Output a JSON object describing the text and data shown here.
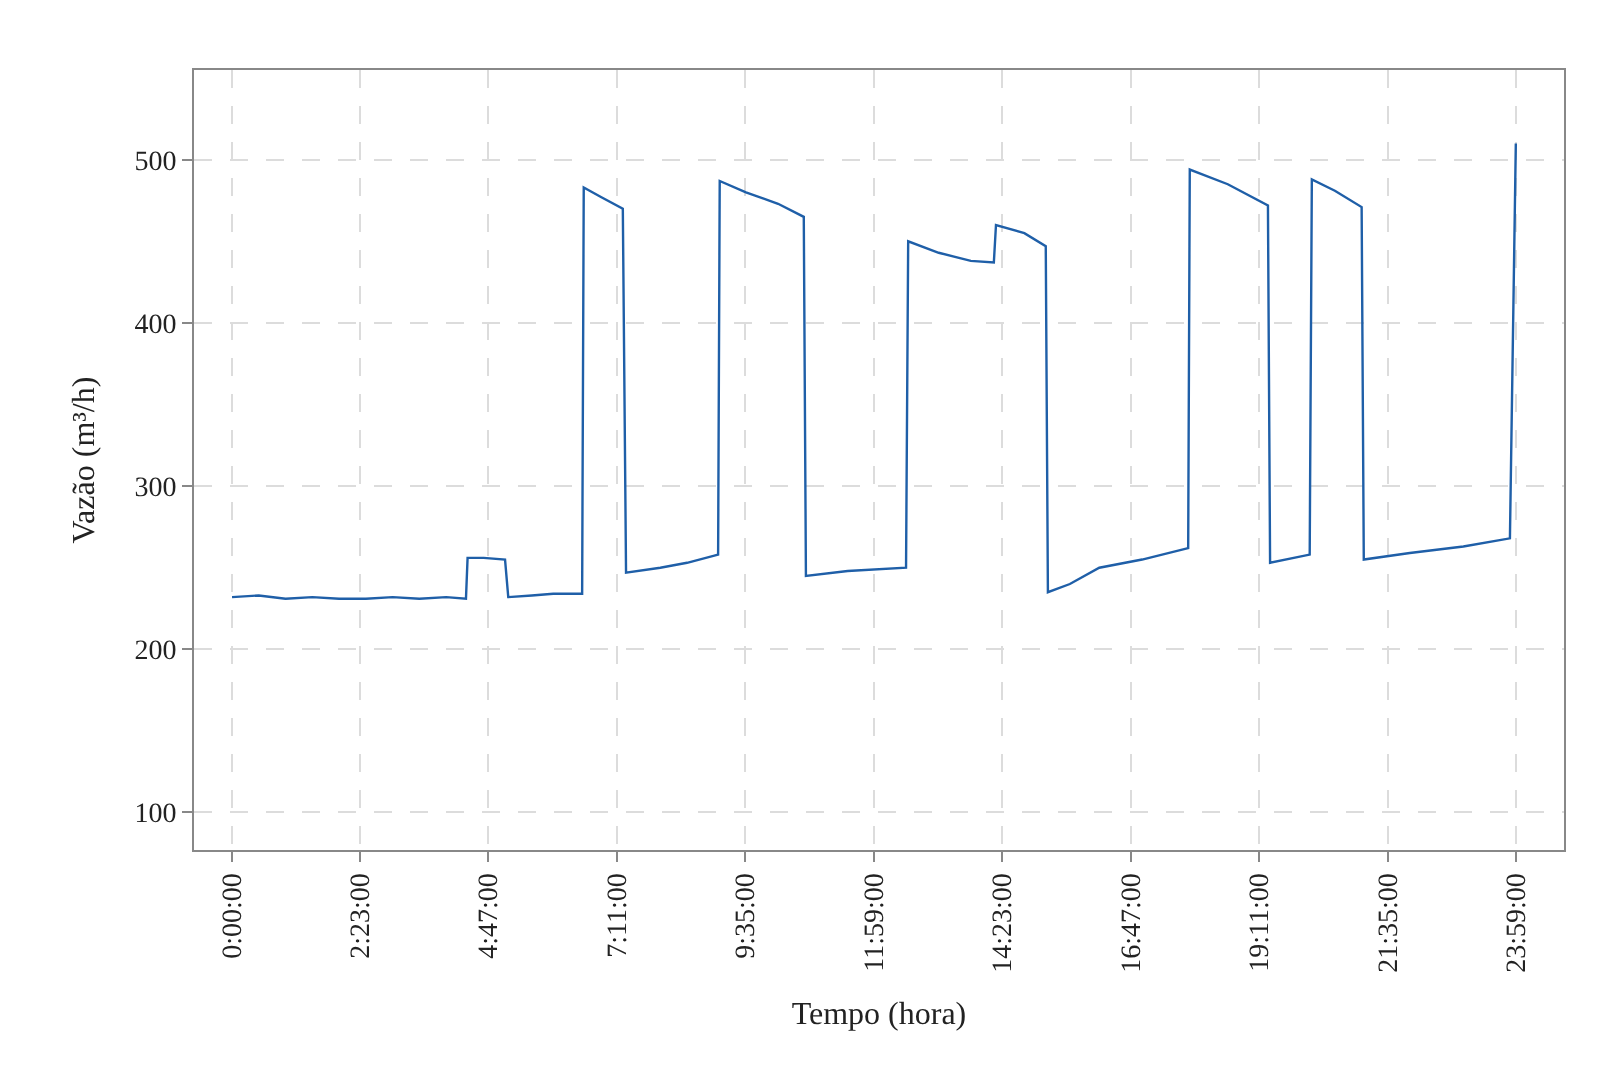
{
  "chart_data": {
    "type": "line",
    "xlabel": "Tempo (hora)",
    "ylabel": "Vazão (m³/h)",
    "x": [
      0,
      0.5,
      1,
      1.5,
      2,
      2.5,
      3,
      3.5,
      4,
      4.37,
      4.4,
      4.7,
      5.1,
      5.16,
      5.6,
      6,
      6.54,
      6.57,
      6.9,
      7.3,
      7.36,
      8,
      8.5,
      9.08,
      9.11,
      9.6,
      10.2,
      10.68,
      10.72,
      11.5,
      12.59,
      12.63,
      13.2,
      13.8,
      14.23,
      14.27,
      14.8,
      15.2,
      15.24,
      15.65,
      16.2,
      17,
      17.86,
      17.89,
      18.6,
      19.35,
      19.39,
      20.13,
      20.17,
      20.6,
      21.1,
      21.14,
      22,
      23,
      23.87,
      23.98
    ],
    "series": [
      {
        "color": "#1f5fa8",
        "values": [
          232,
          233,
          231,
          232,
          231,
          231,
          232,
          231,
          232,
          231,
          256,
          256,
          255,
          232,
          233,
          234,
          234,
          483,
          477,
          470,
          247,
          250,
          253,
          258,
          487,
          480,
          473,
          465,
          245,
          248,
          250,
          450,
          443,
          438,
          437,
          460,
          455,
          447,
          235,
          240,
          250,
          255,
          262,
          494,
          485,
          472,
          253,
          258,
          488,
          481,
          471,
          255,
          259,
          263,
          268,
          510
        ]
      }
    ],
    "xlim": [
      -0.71,
      24.88
    ],
    "ylim": [
      77,
      555
    ],
    "xticks": [
      {
        "value": 0,
        "label": "0:00:00"
      },
      {
        "value": 2.3833,
        "label": "2:23:00"
      },
      {
        "value": 4.7833,
        "label": "4:47:00"
      },
      {
        "value": 7.1833,
        "label": "7:11:00"
      },
      {
        "value": 9.5833,
        "label": "9:35:00"
      },
      {
        "value": 11.9833,
        "label": "11:59:00"
      },
      {
        "value": 14.3833,
        "label": "14:23:00"
      },
      {
        "value": 16.7833,
        "label": "16:47:00"
      },
      {
        "value": 19.1833,
        "label": "19:11:00"
      },
      {
        "value": 21.5833,
        "label": "21:35:00"
      },
      {
        "value": 23.9833,
        "label": "23:59:00"
      }
    ],
    "yticks": [
      100,
      200,
      300,
      400,
      500
    ],
    "grid": true,
    "marker": "none",
    "line_style": "solid"
  }
}
